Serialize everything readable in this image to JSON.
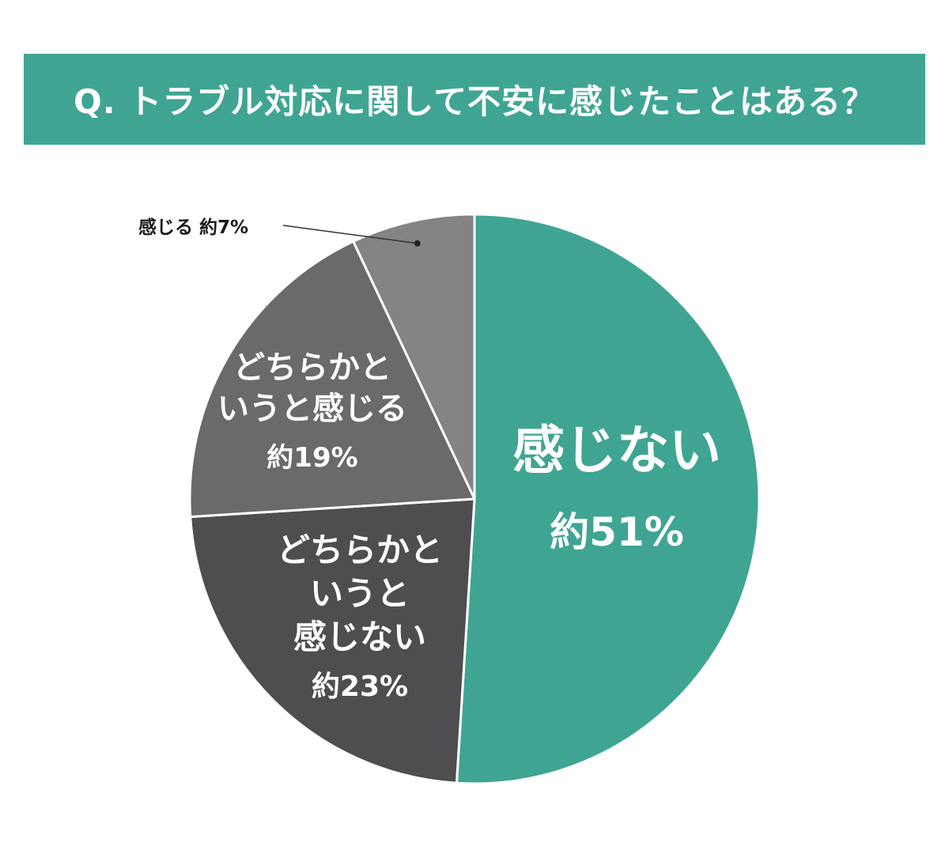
{
  "title": "Q. トラブル対応に関して不安に感じたことはある？",
  "chart_data": {
    "type": "pie",
    "title": "Q. トラブル対応に関して不安に感じたことはある？",
    "start": "12 o'clock",
    "direction": "clockwise",
    "slices": [
      {
        "name": "感じない",
        "value": 51,
        "value_label": "約51%",
        "lines": [
          "感じない"
        ],
        "color": "#3fa592"
      },
      {
        "name": "どちらかというと感じない",
        "value": 23,
        "value_label": "約23%",
        "lines": [
          "どちらかと",
          "いうと",
          "感じない"
        ],
        "color": "#4e4d50"
      },
      {
        "name": "どちらかというと感じる",
        "value": 19,
        "value_label": "約19%",
        "lines": [
          "どちらかと",
          "いうと感じる"
        ],
        "color": "#6a696c"
      },
      {
        "name": "感じる",
        "value": 7,
        "value_label": "約7%",
        "lines": [
          "感じる"
        ],
        "color": "#858386",
        "label_placement": "outside-top-left"
      }
    ]
  }
}
